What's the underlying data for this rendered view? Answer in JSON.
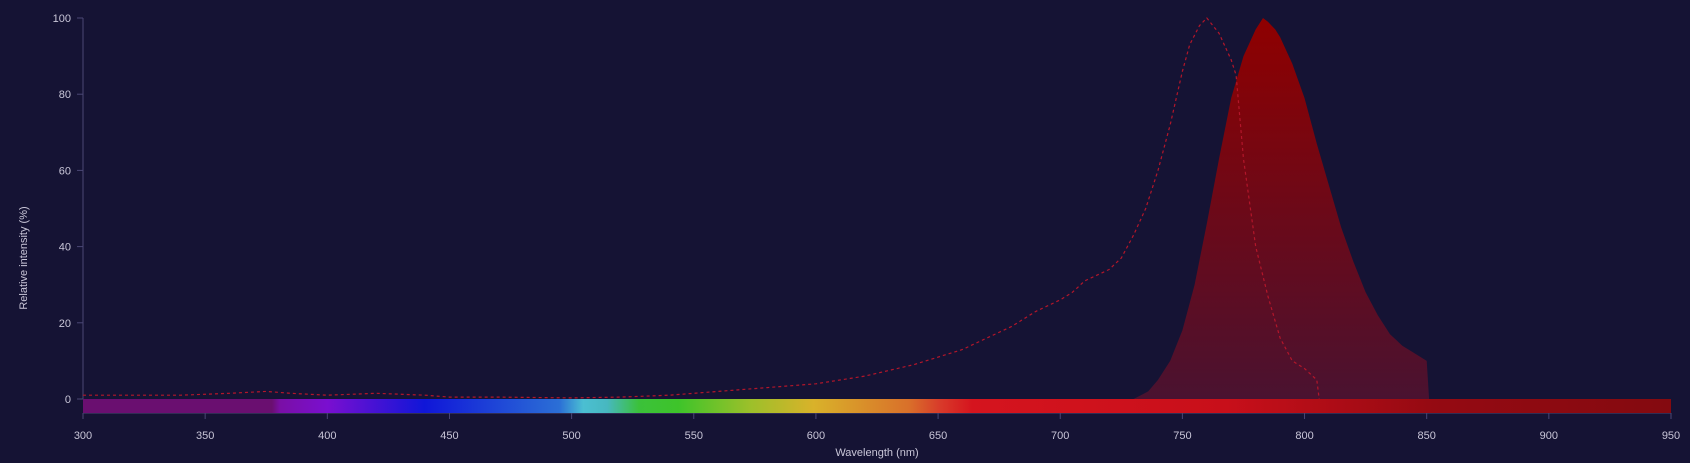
{
  "chart_data": {
    "type": "area",
    "xlabel": "Wavelength (nm)",
    "ylabel": "Relative intensity (%)",
    "xlim": [
      300,
      950
    ],
    "ylim": [
      0,
      100
    ],
    "x_ticks": [
      "300",
      "350",
      "400",
      "450",
      "500",
      "550",
      "600",
      "650",
      "700",
      "750",
      "800",
      "850",
      "900",
      "950"
    ],
    "y_ticks": [
      "0",
      "20",
      "40",
      "60",
      "80",
      "100"
    ],
    "grid": false,
    "legend": "none",
    "colors": {
      "background": "#151334",
      "axis": "#4a4775",
      "text": "#c9c6d8",
      "excitation_line": "#b3162a",
      "emission_top": "#8f0000",
      "emission_bottom": "#4a1230"
    },
    "series": [
      {
        "style": "dashed-line",
        "x": [
          300,
          320,
          340,
          360,
          375,
          385,
          400,
          420,
          440,
          450,
          470,
          500,
          520,
          540,
          560,
          580,
          600,
          620,
          640,
          660,
          670,
          680,
          690,
          700,
          705,
          710,
          720,
          725,
          730,
          735,
          740,
          745,
          750,
          753,
          757,
          760,
          765,
          770,
          772,
          775,
          780,
          785,
          790,
          795,
          800,
          805,
          806
        ],
        "y": [
          1,
          1,
          1,
          1.5,
          2,
          1.5,
          1,
          1.5,
          1,
          0.5,
          0.5,
          0.3,
          0.5,
          1,
          2,
          3,
          4,
          6,
          9,
          13,
          16,
          19,
          23,
          26,
          28,
          31,
          34,
          37,
          43,
          50,
          60,
          72,
          86,
          93,
          98,
          100,
          96,
          89,
          85,
          63,
          40,
          27,
          16,
          10,
          8,
          5,
          0
        ]
      },
      {
        "style": "filled-area",
        "x": [
          730,
          736,
          740,
          745,
          750,
          755,
          760,
          765,
          770,
          775,
          780,
          783,
          785,
          788,
          790,
          795,
          800,
          805,
          810,
          815,
          820,
          825,
          830,
          835,
          840,
          845,
          850,
          851
        ],
        "y": [
          0,
          2,
          5,
          10,
          18,
          30,
          46,
          63,
          79,
          90,
          97,
          100,
          99,
          97,
          95,
          88,
          79,
          67,
          56,
          45,
          36,
          28,
          22,
          17,
          14,
          12,
          10,
          0
        ]
      }
    ]
  }
}
